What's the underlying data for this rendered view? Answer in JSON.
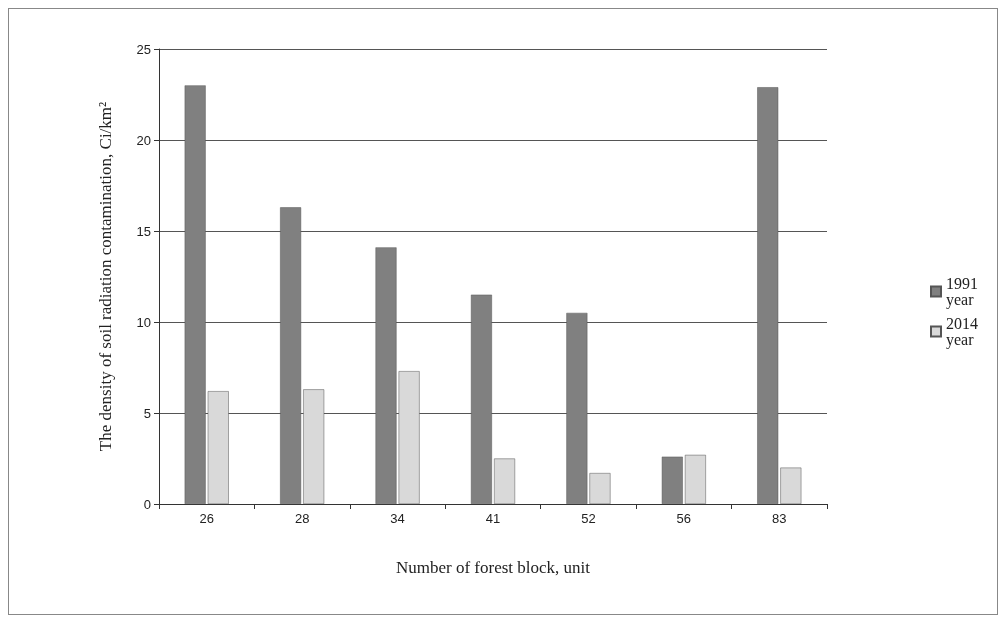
{
  "chart_data": {
    "type": "bar",
    "xlabel": "Number of forest block, unit",
    "ylabel": "The density of soil radiation contamination, Ci/km²",
    "categories": [
      "26",
      "28",
      "34",
      "41",
      "52",
      "56",
      "83"
    ],
    "series": [
      {
        "name": "1991 year",
        "color": "#808080",
        "values": [
          23,
          16.3,
          14.1,
          11.5,
          10.5,
          2.6,
          22.9
        ]
      },
      {
        "name": "2014 year",
        "color": "#d9d9d9",
        "values": [
          6.2,
          6.3,
          7.3,
          2.5,
          1.7,
          2.7,
          2.0
        ]
      }
    ],
    "ylim": [
      0,
      25
    ],
    "yticks": [
      0,
      5,
      10,
      15,
      20,
      25
    ],
    "grid": "y",
    "legend": "right"
  }
}
